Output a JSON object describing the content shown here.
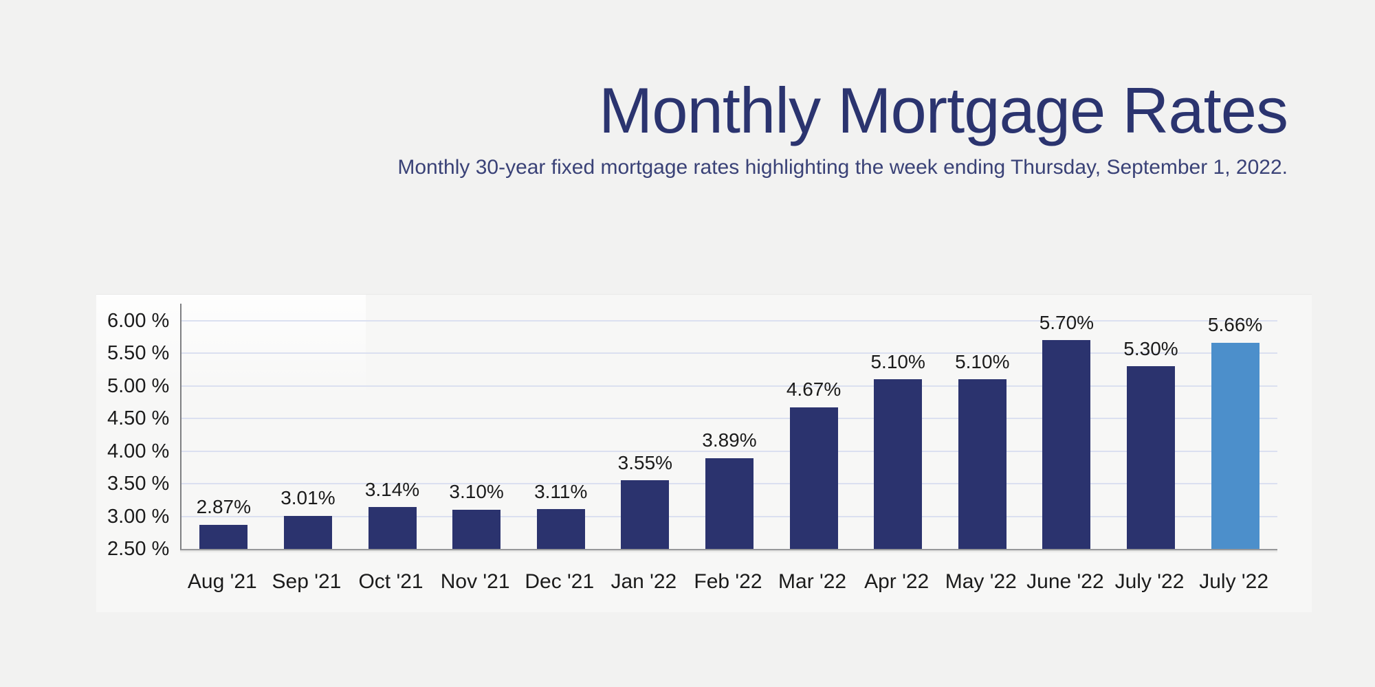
{
  "page": {
    "background": "#f2f2f1"
  },
  "header": {
    "title": "Monthly Mortgage Rates",
    "subtitle": "Monthly 30-year fixed mortgage rates highlighting the week ending Thursday, September 1, 2022."
  },
  "chart_data": {
    "type": "bar",
    "title": "Monthly Mortgage Rates",
    "subtitle": "Monthly 30-year fixed mortgage rates highlighting the week ending Thursday, September 1, 2022.",
    "categories": [
      "Aug '21",
      "Sep '21",
      "Oct '21",
      "Nov '21",
      "Dec '21",
      "Jan '22",
      "Feb '22",
      "Mar '22",
      "Apr '22",
      "May '22",
      "June '22",
      "July '22",
      "July '22"
    ],
    "values": [
      2.87,
      3.01,
      3.14,
      3.1,
      3.11,
      3.55,
      3.89,
      4.67,
      5.1,
      5.1,
      5.7,
      5.3,
      5.66
    ],
    "value_labels": [
      "2.87%",
      "3.01%",
      "3.14%",
      "3.10%",
      "3.11%",
      "3.55%",
      "3.89%",
      "4.67%",
      "5.10%",
      "5.10%",
      "5.70%",
      "5.30%",
      "5.66%"
    ],
    "xlabel": "",
    "ylabel": "",
    "ylim": [
      2.5,
      6.26
    ],
    "grid": true,
    "legend": "none",
    "y_ticks": [
      {
        "value": 6.0,
        "label": "6.00 %"
      },
      {
        "value": 5.5,
        "label": "5.50 %"
      },
      {
        "value": 5.0,
        "label": "5.00 %"
      },
      {
        "value": 4.5,
        "label": "4.50 %"
      },
      {
        "value": 4.0,
        "label": "4.00 %"
      },
      {
        "value": 3.5,
        "label": "3.50 %"
      },
      {
        "value": 3.0,
        "label": "3.00 %"
      },
      {
        "value": 2.5,
        "label": "2.50 %"
      }
    ],
    "colors": {
      "bar": "#2b336e",
      "highlight": "#4c8fcb",
      "gridline": "#dbe0f0",
      "axis": "#8d8e90",
      "label_text": "#1b1b1b"
    },
    "highlight_index": 12
  }
}
